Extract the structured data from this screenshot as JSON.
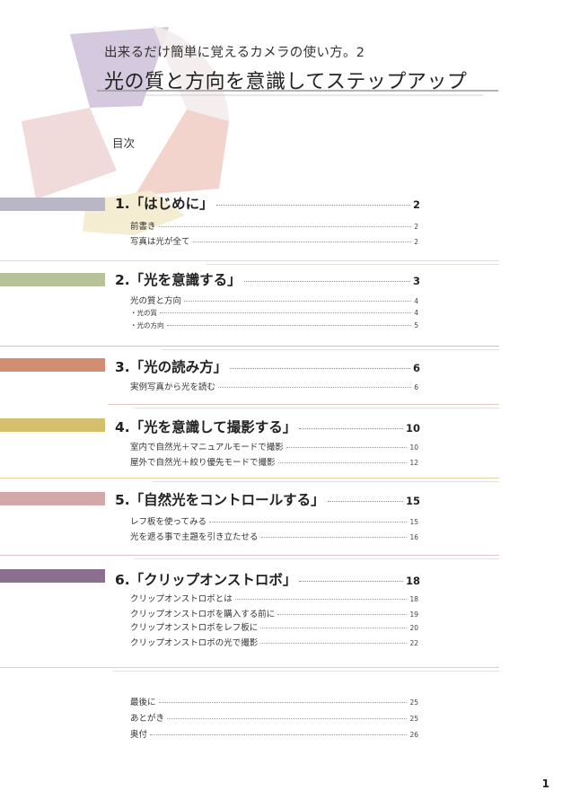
{
  "header": {
    "subtitle": "出来るだけ簡単に覚えるカメラの使い方。2",
    "title": "光の質と方向を意識してステップアップ"
  },
  "toc_heading": "目次",
  "colors": {
    "lavender": "#b9b6c6",
    "green": "#b7c29b",
    "terracotta": "#d38d73",
    "mustard": "#d4c06c",
    "pink": "#d3a9a8",
    "purple": "#8a6f8e"
  },
  "chapters": [
    {
      "title": "1.「はじめに」",
      "page": "2",
      "color": "lavender",
      "items": [
        {
          "label": "前書き",
          "page": "2"
        },
        {
          "label": "写真は光が全て",
          "page": "2"
        }
      ]
    },
    {
      "title": "2.「光を意識する」",
      "page": "3",
      "color": "green",
      "items": [
        {
          "label": "光の質と方向",
          "page": "4"
        },
        {
          "label": "・光の質",
          "page": "4",
          "small": true
        },
        {
          "label": "・光の方向",
          "page": "5",
          "small": true
        }
      ]
    },
    {
      "title": "3.「光の読み方」",
      "page": "6",
      "color": "terracotta",
      "items": [
        {
          "label": "実例写真から光を読む",
          "page": "6"
        }
      ]
    },
    {
      "title": "4.「光を意識して撮影する」",
      "page": "10",
      "color": "mustard",
      "items": [
        {
          "label": "室内で自然光＋マニュアルモードで撮影",
          "page": "10"
        },
        {
          "label": "屋外で自然光＋絞り優先モードで撮影",
          "page": "12"
        }
      ]
    },
    {
      "title": "5.「自然光をコントロールする」",
      "page": "15",
      "color": "pink",
      "items": [
        {
          "label": "レフ板を使ってみる",
          "page": "15"
        },
        {
          "label": "光を遮る事で主題を引き立たせる",
          "page": "16"
        }
      ]
    },
    {
      "title": "6.「クリップオンストロボ」",
      "page": "18",
      "color": "purple",
      "items": [
        {
          "label": "クリップオンストロボとは",
          "page": "18"
        },
        {
          "label": "クリップオンストロボを購入する前に",
          "page": "19"
        },
        {
          "label": "クリップオンストロボをレフ板に",
          "page": "20"
        },
        {
          "label": "クリップオンストロボの光で撮影",
          "page": "22"
        }
      ]
    }
  ],
  "end_items": [
    {
      "label": "最後に",
      "page": "25"
    },
    {
      "label": "あとがき",
      "page": "25"
    },
    {
      "label": "奥付",
      "page": "26"
    }
  ],
  "page_number": "1"
}
